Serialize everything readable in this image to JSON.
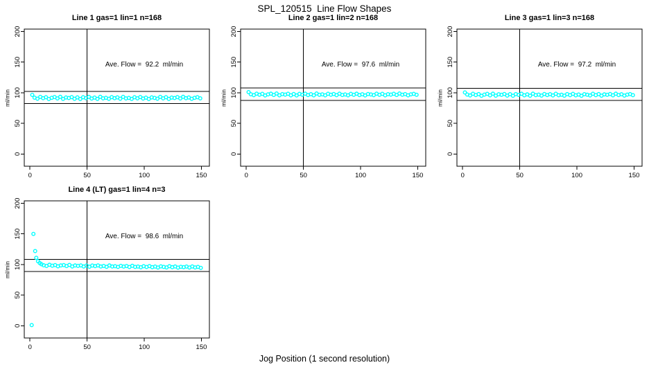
{
  "page": {
    "main_title": "SPL_120515  Line Flow Shapes",
    "x_axis_label": "Jog Position (1 second resolution)"
  },
  "colors": {
    "background": "#ffffff",
    "points": "#00ffff",
    "axis": "#000000",
    "text": "#000000"
  },
  "chart_data": {
    "type": "scatter",
    "title": "SPL_120515  Line Flow Shapes",
    "xlabel": "Jog Position (1 second resolution)",
    "y_unit_label": "ml/min",
    "x_ticks": [
      0,
      50,
      100,
      150
    ],
    "y_ticks": [
      0,
      50,
      100,
      150,
      200
    ],
    "xlim": [
      -5,
      157
    ],
    "ylim": [
      -20,
      204
    ],
    "grid": false,
    "vline_x": 50,
    "marker": "open-circle",
    "panels": [
      {
        "title": "Line 1 gas=1 lin=1 n=168",
        "gas": 1,
        "lin": 1,
        "n": 168,
        "ave_flow_ml_min": 92.2,
        "annotation": "Ave. Flow =  92.2  ml/min",
        "ref_lines": [
          102.2,
          82.2
        ],
        "lead_points": [
          [
            2,
            96.5
          ]
        ],
        "band_x_start": 4,
        "band_x_step": 2.5,
        "band_y": [
          92.0,
          90.3,
          93.2,
          91.1,
          92.7,
          89.8,
          91.8,
          93.0,
          90.7,
          93.4,
          90.0,
          92.3,
          91.4,
          92.9,
          90.2,
          92.5,
          89.8,
          92.7,
          91.2,
          93.2,
          90.5,
          92.1,
          90.0,
          93.4,
          90.9,
          91.8,
          90.2,
          92.9,
          91.1,
          92.5,
          90.3,
          93.2,
          90.7,
          91.6,
          90.0,
          92.7,
          90.9,
          93.0,
          90.5,
          92.0,
          89.8,
          92.5,
          91.6,
          90.3,
          93.2,
          90.9,
          92.7,
          90.0,
          92.1,
          91.4,
          92.9,
          90.7,
          93.4,
          91.1,
          92.3,
          90.2,
          91.8,
          92.7,
          90.9
        ]
      },
      {
        "title": "Line 2 gas=1 lin=2 n=168",
        "gas": 1,
        "lin": 2,
        "n": 168,
        "ave_flow_ml_min": 97.6,
        "annotation": "Ave. Flow =  97.6  ml/min",
        "ref_lines": [
          107.6,
          87.6
        ],
        "lead_points": [
          [
            2,
            101.0
          ]
        ],
        "band_x_start": 4,
        "band_x_step": 2.5,
        "band_y": [
          97.5,
          96.1,
          98.6,
          96.7,
          98.2,
          95.6,
          97.4,
          98.5,
          96.4,
          98.8,
          95.8,
          97.8,
          97.0,
          98.3,
          95.9,
          98.0,
          95.6,
          98.2,
          96.9,
          98.6,
          96.2,
          97.7,
          95.8,
          98.8,
          96.6,
          97.4,
          95.9,
          98.3,
          96.7,
          98.0,
          96.1,
          98.6,
          96.4,
          97.2,
          95.8,
          98.2,
          96.6,
          98.5,
          96.2,
          97.5,
          95.6,
          98.0,
          97.2,
          96.1,
          98.6,
          96.6,
          98.2,
          95.8,
          97.7,
          97.0,
          98.3,
          96.4,
          98.8,
          96.7,
          97.8,
          95.9,
          97.4,
          98.2,
          96.6
        ]
      },
      {
        "title": "Line 3 gas=1 lin=3 n=168",
        "gas": 1,
        "lin": 3,
        "n": 168,
        "ave_flow_ml_min": 97.2,
        "annotation": "Ave. Flow =  97.2  ml/min",
        "ref_lines": [
          107.2,
          87.2
        ],
        "lead_points": [
          [
            2,
            100.5
          ]
        ],
        "band_x_start": 4,
        "band_x_step": 2.5,
        "band_y": [
          97.1,
          95.6,
          98.3,
          96.3,
          97.8,
          95.1,
          97.0,
          98.2,
          95.9,
          98.5,
          95.3,
          97.5,
          96.6,
          98.0,
          95.4,
          97.7,
          95.1,
          97.8,
          96.5,
          98.3,
          95.8,
          97.3,
          95.3,
          98.5,
          96.1,
          97.0,
          95.4,
          98.0,
          96.3,
          97.7,
          95.6,
          98.3,
          96.0,
          96.8,
          95.3,
          97.8,
          96.1,
          98.2,
          95.8,
          97.1,
          95.1,
          97.7,
          96.8,
          95.6,
          98.3,
          96.1,
          97.8,
          95.3,
          97.3,
          96.6,
          98.0,
          95.9,
          98.5,
          96.3,
          97.5,
          95.4,
          97.0,
          97.8,
          96.1
        ]
      },
      {
        "title": "Line 4 (LT) gas=1 lin=4 n=3",
        "gas": 1,
        "lin": 4,
        "n": 3,
        "ave_flow_ml_min": 98.6,
        "annotation": "Ave. Flow =  98.6  ml/min",
        "ref_lines": [
          108.6,
          88.6
        ],
        "lead_points": [
          [
            1.5,
            1.0
          ],
          [
            3,
            150.0
          ],
          [
            4.5,
            122.0
          ],
          [
            5.5,
            111.0
          ],
          [
            7,
            105.5
          ],
          [
            8.5,
            102.5
          ],
          [
            10,
            100.5
          ]
        ],
        "band_x_start": 12,
        "band_x_step": 2.5,
        "band_y": [
          98.8,
          97.7,
          99.6,
          98.1,
          99.1,
          97.1,
          98.4,
          99.1,
          97.5,
          99.3,
          96.9,
          98.4,
          97.8,
          98.6,
          96.8,
          98.3,
          96.4,
          98.3,
          97.3,
          98.6,
          96.7,
          97.7,
          96.2,
          98.4,
          96.7,
          97.2,
          96.1,
          97.8,
          96.6,
          97.5,
          96.0,
          97.9,
          96.1,
          96.6,
          95.5,
          97.2,
          96.0,
          97.4,
          95.7,
          96.6,
          95.2,
          97.0,
          96.1,
          95.3,
          97.2,
          95.6,
          96.8,
          94.9,
          96.3,
          95.7,
          96.6,
          95.2,
          96.9,
          95.3,
          96.1,
          94.6
        ]
      }
    ]
  }
}
